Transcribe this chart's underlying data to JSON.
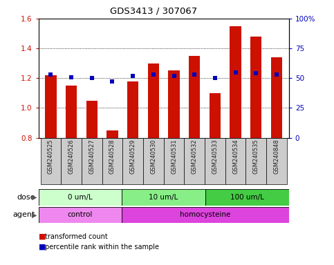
{
  "title": "GDS3413 / 307067",
  "samples": [
    "GSM240525",
    "GSM240526",
    "GSM240527",
    "GSM240528",
    "GSM240529",
    "GSM240530",
    "GSM240531",
    "GSM240532",
    "GSM240533",
    "GSM240534",
    "GSM240535",
    "GSM240848"
  ],
  "transformed_count": [
    1.22,
    1.15,
    1.05,
    0.85,
    1.18,
    1.3,
    1.25,
    1.35,
    1.1,
    1.55,
    1.48,
    1.34
  ],
  "percentile_rank": [
    53,
    51,
    50,
    47,
    52,
    53,
    52,
    53,
    50,
    55,
    54,
    53
  ],
  "ylim_left": [
    0.8,
    1.6
  ],
  "ylim_right": [
    0,
    100
  ],
  "yticks_left": [
    0.8,
    1.0,
    1.2,
    1.4,
    1.6
  ],
  "yticks_right": [
    0,
    25,
    50,
    75,
    100
  ],
  "ytick_labels_right": [
    "0",
    "25",
    "50",
    "75",
    "100%"
  ],
  "bar_color": "#cc1100",
  "dot_color": "#0000bb",
  "dose_groups": [
    {
      "label": "0 um/L",
      "start": 0,
      "end": 4,
      "color": "#ccffcc"
    },
    {
      "label": "10 um/L",
      "start": 4,
      "end": 8,
      "color": "#88ee88"
    },
    {
      "label": "100 um/L",
      "start": 8,
      "end": 12,
      "color": "#44cc44"
    }
  ],
  "agent_groups": [
    {
      "label": "control",
      "start": 0,
      "end": 4,
      "color": "#ee88ee"
    },
    {
      "label": "homocysteine",
      "start": 4,
      "end": 12,
      "color": "#dd44dd"
    }
  ],
  "legend_items": [
    {
      "label": "transformed count",
      "color": "#cc1100"
    },
    {
      "label": "percentile rank within the sample",
      "color": "#0000bb"
    }
  ],
  "dose_label": "dose",
  "agent_label": "agent",
  "tick_label_color_left": "#cc1100",
  "tick_label_color_right": "#0000bb",
  "xtick_bg_color": "#cccccc",
  "background_color": "#ffffff"
}
